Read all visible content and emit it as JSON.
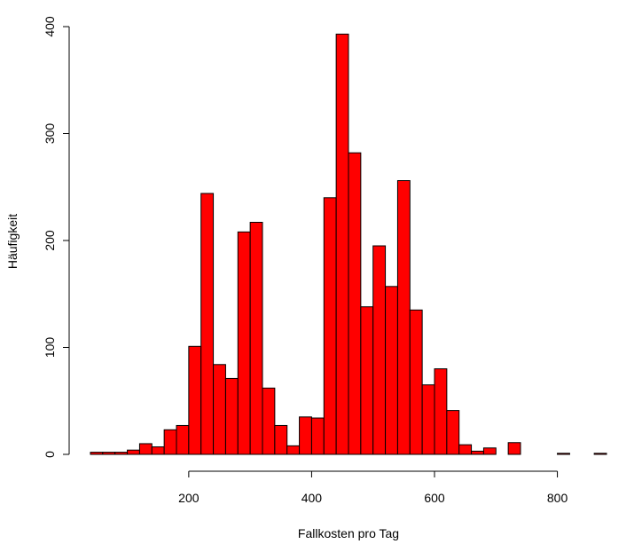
{
  "chart_data": {
    "type": "bar",
    "title": "",
    "xlabel": "Fallkosten pro Tag",
    "ylabel": "Häufigkeit",
    "bar_color": "#ff0000",
    "border_color": "#000000",
    "bin_width": 20,
    "xlim": [
      40,
      880
    ],
    "ylim": [
      0,
      400
    ],
    "x_ticks": [
      200,
      400,
      600,
      800
    ],
    "y_ticks": [
      0,
      100,
      200,
      300,
      400
    ],
    "bins": [
      {
        "start": 40,
        "end": 60,
        "count": 2
      },
      {
        "start": 60,
        "end": 80,
        "count": 2
      },
      {
        "start": 80,
        "end": 100,
        "count": 2
      },
      {
        "start": 100,
        "end": 120,
        "count": 4
      },
      {
        "start": 120,
        "end": 140,
        "count": 10
      },
      {
        "start": 140,
        "end": 160,
        "count": 7
      },
      {
        "start": 160,
        "end": 180,
        "count": 23
      },
      {
        "start": 180,
        "end": 200,
        "count": 27
      },
      {
        "start": 200,
        "end": 220,
        "count": 101
      },
      {
        "start": 220,
        "end": 240,
        "count": 244
      },
      {
        "start": 240,
        "end": 260,
        "count": 84
      },
      {
        "start": 260,
        "end": 280,
        "count": 71
      },
      {
        "start": 280,
        "end": 300,
        "count": 208
      },
      {
        "start": 300,
        "end": 320,
        "count": 217
      },
      {
        "start": 320,
        "end": 340,
        "count": 62
      },
      {
        "start": 340,
        "end": 360,
        "count": 27
      },
      {
        "start": 360,
        "end": 380,
        "count": 8
      },
      {
        "start": 380,
        "end": 400,
        "count": 35
      },
      {
        "start": 400,
        "end": 420,
        "count": 34
      },
      {
        "start": 420,
        "end": 440,
        "count": 240
      },
      {
        "start": 440,
        "end": 460,
        "count": 393
      },
      {
        "start": 460,
        "end": 480,
        "count": 282
      },
      {
        "start": 480,
        "end": 500,
        "count": 138
      },
      {
        "start": 500,
        "end": 520,
        "count": 195
      },
      {
        "start": 520,
        "end": 540,
        "count": 157
      },
      {
        "start": 540,
        "end": 560,
        "count": 256
      },
      {
        "start": 560,
        "end": 580,
        "count": 135
      },
      {
        "start": 580,
        "end": 600,
        "count": 65
      },
      {
        "start": 600,
        "end": 620,
        "count": 80
      },
      {
        "start": 620,
        "end": 640,
        "count": 41
      },
      {
        "start": 640,
        "end": 660,
        "count": 9
      },
      {
        "start": 660,
        "end": 680,
        "count": 3
      },
      {
        "start": 680,
        "end": 700,
        "count": 6
      },
      {
        "start": 700,
        "end": 720,
        "count": 0
      },
      {
        "start": 720,
        "end": 740,
        "count": 11
      },
      {
        "start": 740,
        "end": 760,
        "count": 0
      },
      {
        "start": 760,
        "end": 780,
        "count": 0
      },
      {
        "start": 780,
        "end": 800,
        "count": 0
      },
      {
        "start": 800,
        "end": 820,
        "count": 1
      },
      {
        "start": 820,
        "end": 840,
        "count": 0
      },
      {
        "start": 840,
        "end": 860,
        "count": 0
      },
      {
        "start": 860,
        "end": 880,
        "count": 1
      }
    ]
  }
}
